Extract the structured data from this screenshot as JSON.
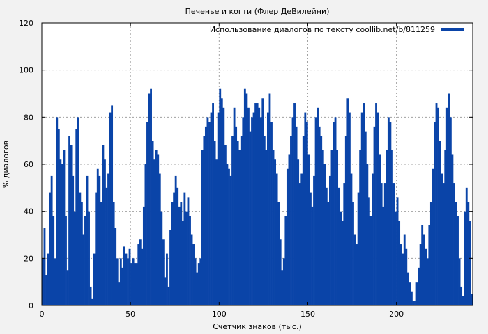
{
  "chart_data": {
    "type": "bar",
    "title": "Печенье и когти (Флер ДеВилейни)",
    "xlabel": "Счетчик знаков (тыс.)",
    "ylabel": "% диалогов",
    "legend": "Использование диалогов по тексту coollib.net/b/811259",
    "legend_position": "top-right",
    "grid": true,
    "xlim": [
      0,
      243
    ],
    "ylim": [
      0,
      120
    ],
    "xticks": [
      0,
      50,
      100,
      150,
      200
    ],
    "yticks": [
      0,
      20,
      40,
      60,
      80,
      100,
      120
    ],
    "bar_color": "#0a44a8",
    "x_step": 1,
    "values": [
      20,
      33,
      13,
      22,
      48,
      55,
      38,
      20,
      80,
      75,
      62,
      60,
      66,
      38,
      15,
      72,
      68,
      55,
      40,
      75,
      80,
      48,
      44,
      30,
      38,
      55,
      40,
      8,
      3,
      22,
      48,
      58,
      55,
      44,
      68,
      62,
      50,
      56,
      82,
      85,
      44,
      33,
      20,
      10,
      20,
      16,
      25,
      22,
      20,
      24,
      18,
      20,
      18,
      18,
      26,
      28,
      24,
      42,
      60,
      78,
      90,
      92,
      70,
      62,
      66,
      64,
      56,
      40,
      28,
      12,
      22,
      8,
      32,
      44,
      48,
      55,
      50,
      42,
      44,
      36,
      48,
      40,
      46,
      38,
      30,
      26,
      20,
      14,
      18,
      20,
      66,
      72,
      76,
      80,
      78,
      82,
      86,
      70,
      62,
      82,
      92,
      88,
      84,
      68,
      60,
      58,
      55,
      72,
      84,
      76,
      70,
      66,
      72,
      80,
      92,
      90,
      84,
      74,
      80,
      82,
      86,
      86,
      84,
      80,
      88,
      72,
      66,
      82,
      90,
      78,
      66,
      62,
      56,
      44,
      28,
      15,
      20,
      38,
      58,
      64,
      72,
      80,
      86,
      76,
      62,
      52,
      56,
      72,
      82,
      78,
      64,
      48,
      42,
      55,
      80,
      84,
      76,
      72,
      66,
      60,
      50,
      44,
      55,
      66,
      78,
      80,
      66,
      50,
      40,
      36,
      52,
      72,
      88,
      82,
      56,
      44,
      30,
      26,
      48,
      66,
      82,
      86,
      74,
      60,
      46,
      38,
      56,
      76,
      86,
      82,
      64,
      52,
      42,
      52,
      66,
      80,
      78,
      66,
      52,
      40,
      46,
      36,
      26,
      22,
      30,
      24,
      14,
      10,
      6,
      2,
      2,
      10,
      16,
      26,
      34,
      30,
      24,
      20,
      34,
      44,
      58,
      78,
      86,
      84,
      70,
      56,
      52,
      66,
      84,
      90,
      80,
      64,
      52,
      44,
      38,
      20,
      8,
      4,
      40,
      50,
      44,
      36,
      5
    ]
  }
}
